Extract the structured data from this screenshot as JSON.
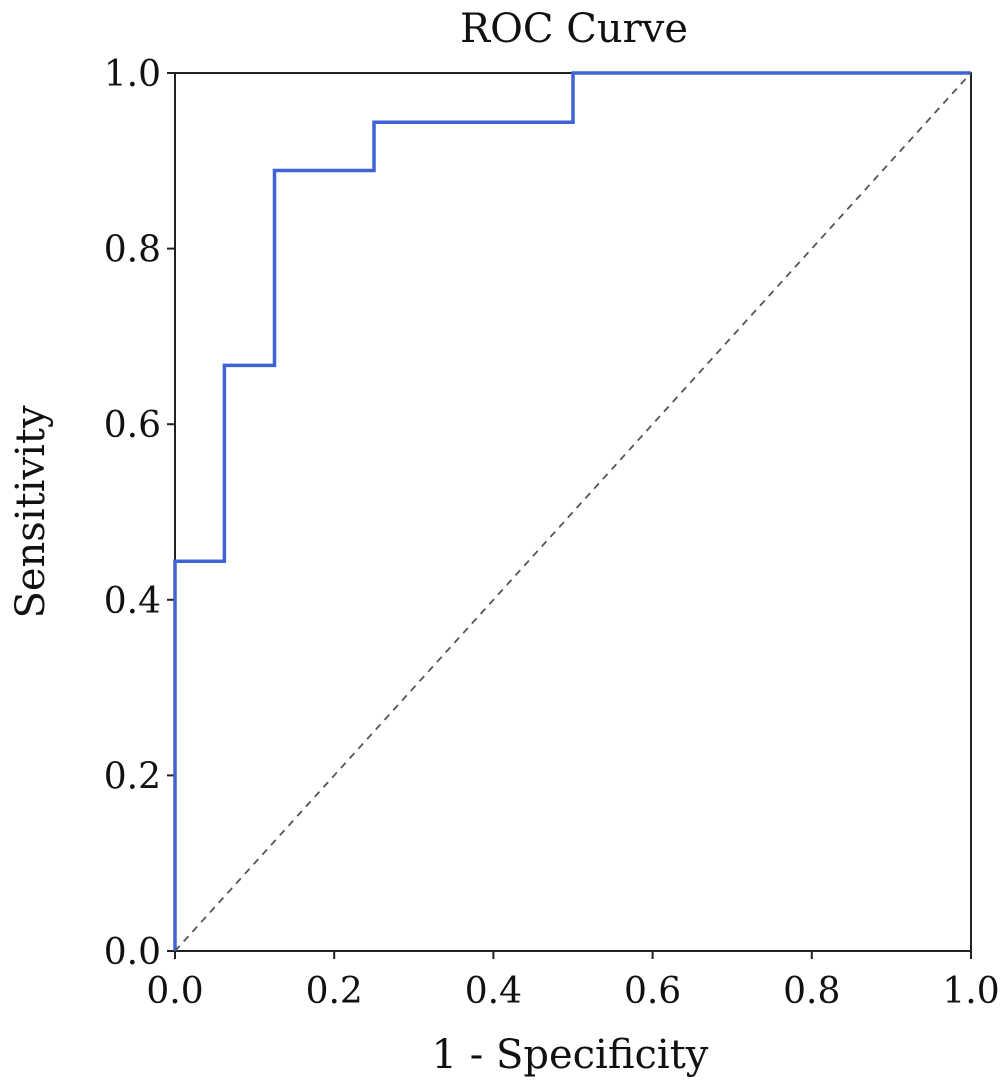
{
  "chart_data": {
    "type": "line",
    "title": "ROC Curve",
    "xlabel": "1 - Specificity",
    "ylabel": "Sensitivity",
    "xlim": [
      0,
      1
    ],
    "ylim": [
      0,
      1
    ],
    "xticks": [
      "0.0",
      "0.2",
      "0.4",
      "0.6",
      "0.8",
      "1.0"
    ],
    "yticks": [
      "0.0",
      "0.2",
      "0.4",
      "0.6",
      "0.8",
      "1.0"
    ],
    "grid": false,
    "legend": "none",
    "series": [
      {
        "style": "step",
        "color": "#3f63d6",
        "x": [
          0.0,
          0.0,
          0.062,
          0.062,
          0.125,
          0.125,
          0.25,
          0.25,
          0.5,
          0.5,
          1.0
        ],
        "y": [
          0.0,
          0.444,
          0.444,
          0.667,
          0.667,
          0.889,
          0.889,
          0.944,
          0.944,
          1.0,
          1.0
        ]
      },
      {
        "style": "dashed",
        "color": "#555555",
        "x": [
          0.0,
          1.0
        ],
        "y": [
          0.0,
          1.0
        ]
      }
    ]
  }
}
